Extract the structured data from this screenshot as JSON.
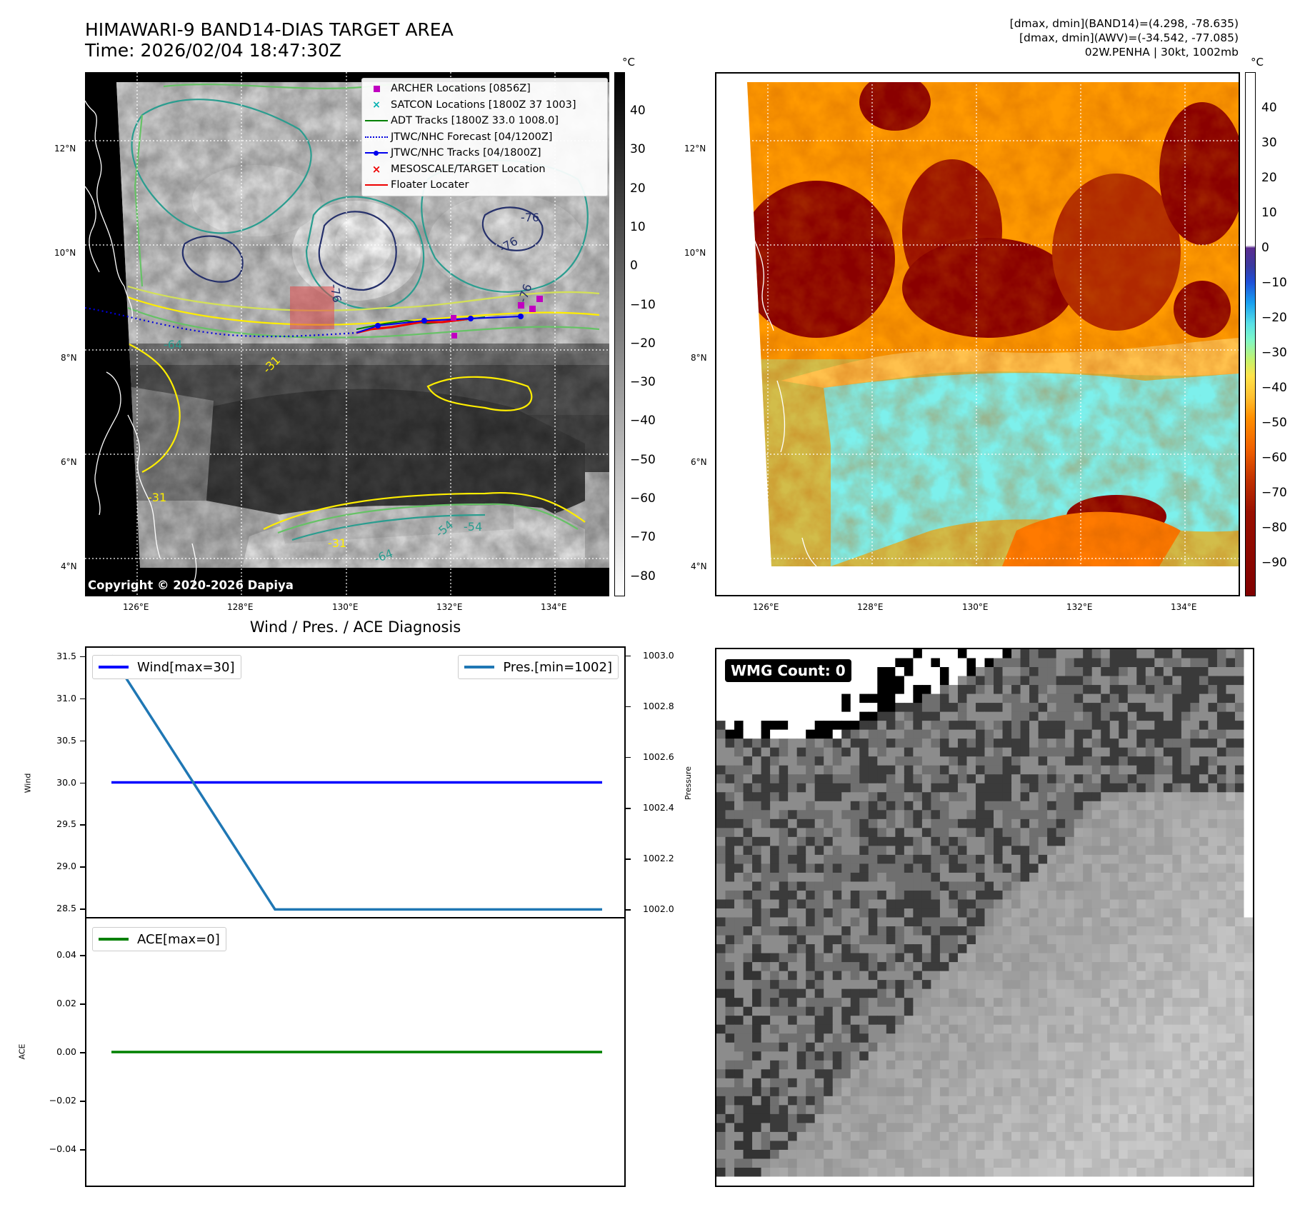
{
  "header": {
    "title_line1": "HIMAWARI-9 BAND14-DIAS TARGET AREA",
    "title_line2": "Time: 2026/02/04 18:47:30Z",
    "info_line1": "[dmax, dmin](BAND14)=(4.298, -78.635)",
    "info_line2": "[dmax, dmin](AWV)=(-34.542, -77.085)",
    "info_line3": "02W.PENHA | 30kt, 1002mb"
  },
  "map_axes": {
    "lat_ticks": [
      "12°N",
      "10°N",
      "8°N",
      "6°N",
      "4°N"
    ],
    "lon_ticks": [
      "126°E",
      "128°E",
      "130°E",
      "132°E",
      "134°E"
    ],
    "copyright": "Copyright © 2020-2026 Dapiya"
  },
  "contour_labels": [
    "-76",
    "-76",
    "-76",
    "-76",
    "-64",
    "-31",
    "-31",
    "-31",
    "-54",
    "-54",
    "-64"
  ],
  "legend": {
    "items": [
      {
        "label": "ARCHER Locations [0856Z]",
        "symbol": "square",
        "color": "#c000c0"
      },
      {
        "label": "SATCON Locations [1800Z 37 1003]",
        "symbol": "x",
        "color": "#00b0b0"
      },
      {
        "label": "ADT Tracks [1800Z 33.0 1008.0]",
        "symbol": "line",
        "color": "#008000"
      },
      {
        "label": "JTWC/NHC Forecast [04/1200Z]",
        "symbol": "dotted",
        "color": "#0000dd"
      },
      {
        "label": "JTWC/NHC Tracks [04/1800Z]",
        "symbol": "line-dot",
        "color": "#0000ee"
      },
      {
        "label": "MESOSCALE/TARGET Location",
        "symbol": "x",
        "color": "#ee0000"
      },
      {
        "label": "Floater Locater",
        "symbol": "line",
        "color": "#ee0000"
      }
    ]
  },
  "colorbar_gray": {
    "unit": "°C",
    "ticks": [
      "40",
      "30",
      "20",
      "10",
      "0",
      "−10",
      "−20",
      "−30",
      "−40",
      "−50",
      "−60",
      "−70",
      "−80"
    ]
  },
  "colorbar_awv": {
    "unit": "°C",
    "ticks": [
      "40",
      "30",
      "20",
      "10",
      "0",
      "−10",
      "−20",
      "−30",
      "−40",
      "−50",
      "−60",
      "−70",
      "−80",
      "−90"
    ]
  },
  "wmg": {
    "label": "WMG Count: 0"
  },
  "chart_data": [
    {
      "type": "line",
      "title": "Wind / Pres. / ACE Diagnosis",
      "ylabel": "Wind",
      "ylim": [
        28.4,
        31.6
      ],
      "yticks": [
        "31.5",
        "31.0",
        "30.5",
        "30.0",
        "29.5",
        "29.0",
        "28.5"
      ],
      "x": [
        0,
        1,
        2,
        3
      ],
      "series": [
        {
          "name": "Wind[max=30]",
          "values": [
            30,
            30,
            30,
            30
          ],
          "color": "#0000ff"
        }
      ],
      "grid": false,
      "legend": "top-left"
    },
    {
      "type": "line",
      "ylabel": "Pressure",
      "ylim": [
        1001.97,
        1003.03
      ],
      "yticks": [
        "1003.0",
        "1002.8",
        "1002.6",
        "1002.4",
        "1002.2",
        "1002.0"
      ],
      "x": [
        0,
        1,
        2,
        3
      ],
      "series": [
        {
          "name": "Pres.[min=1002]",
          "values": [
            1003,
            1002,
            1002,
            1002
          ],
          "color": "#1f77b4"
        }
      ],
      "legend": "top-right"
    },
    {
      "type": "line",
      "ylabel": "ACE",
      "ylim": [
        -0.055,
        0.055
      ],
      "yticks": [
        "0.04",
        "0.02",
        "0.00",
        "−0.02",
        "−0.04"
      ],
      "x": [
        0,
        1,
        2,
        3
      ],
      "series": [
        {
          "name": "ACE[max=0]",
          "values": [
            0,
            0,
            0,
            0
          ],
          "color": "#008000"
        }
      ],
      "legend": "top-left"
    }
  ]
}
